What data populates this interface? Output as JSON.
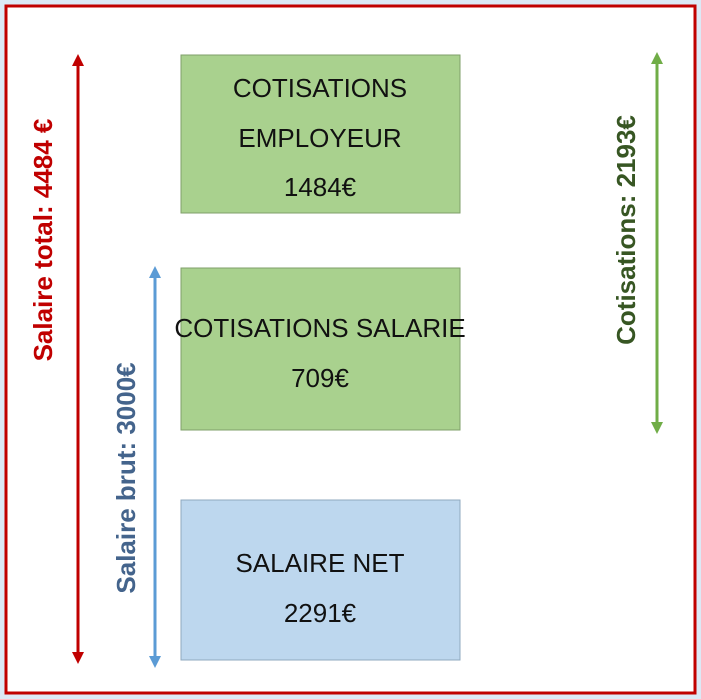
{
  "boxes": [
    {
      "lines": [
        "COTISATIONS",
        "EMPLOYEUR",
        "1484€"
      ]
    },
    {
      "lines": [
        "COTISATIONS SALARIE",
        "709€"
      ]
    },
    {
      "lines": [
        "SALAIRE NET",
        "2291€"
      ]
    }
  ],
  "arrows": [
    {
      "label": "Salaire total: 4484 €"
    },
    {
      "label": "Salaire brut: 3000€"
    },
    {
      "label": "Cotisations: 2193€"
    }
  ]
}
